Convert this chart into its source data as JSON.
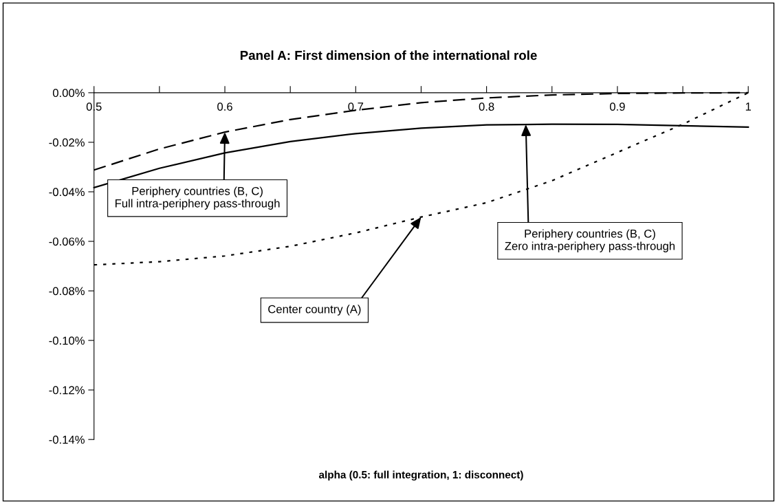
{
  "chart_data": {
    "type": "line",
    "title": "Panel A: First dimension of the international role",
    "xlabel": "alpha (0.5: full integration, 1: disconnect)",
    "x": [
      0.5,
      0.55,
      0.6,
      0.65,
      0.7,
      0.75,
      0.8,
      0.85,
      0.9,
      0.95,
      1.0
    ],
    "series": [
      {
        "color": "#000000",
        "line_style": "solid",
        "values": [
          -0.0383,
          -0.0305,
          -0.0243,
          -0.0197,
          -0.0165,
          -0.0143,
          -0.013,
          -0.0127,
          -0.0128,
          -0.0133,
          -0.0139
        ]
      },
      {
        "color": "#000000",
        "line_style": "dashed",
        "values": [
          -0.0312,
          -0.0227,
          -0.0159,
          -0.0108,
          -0.0071,
          -0.004,
          -0.0021,
          -0.0009,
          -0.0003,
          -0.0001,
          0.0
        ]
      },
      {
        "color": "#000000",
        "line_style": "dotted",
        "values": [
          -0.0695,
          -0.0682,
          -0.0659,
          -0.062,
          -0.0566,
          -0.0502,
          -0.0444,
          -0.0355,
          -0.0241,
          -0.0127,
          0.0
        ]
      }
    ],
    "xlim": [
      0.5,
      1.0
    ],
    "ylim": [
      -0.14,
      0.0
    ],
    "xticks": [
      0.5,
      {
        "value": 0.55,
        "label": null
      },
      0.6,
      {
        "value": 0.65,
        "label": null
      },
      0.7,
      {
        "value": 0.75,
        "label": null
      },
      0.8,
      {
        "value": 0.85,
        "label": null
      },
      0.9,
      {
        "value": 0.95,
        "label": null
      },
      1
    ],
    "yticks": [
      {
        "value": 0.0,
        "label": "0.00%"
      },
      {
        "value": -0.02,
        "label": "-0.02%"
      },
      {
        "value": -0.04,
        "label": "-0.04%"
      },
      {
        "value": -0.06,
        "label": "-0.06%"
      },
      {
        "value": -0.08,
        "label": "-0.08%"
      },
      {
        "value": -0.1,
        "label": "-0.10%"
      },
      {
        "value": -0.12,
        "label": "-0.12%"
      },
      {
        "value": -0.14,
        "label": "-0.14%"
      }
    ],
    "annotations": [
      {
        "text": "Periphery countries (B, C)\nFull intra-periphery pass-through",
        "x": 0.6,
        "y": -0.0159
      },
      {
        "text": "Periphery countries (B, C)\nZero intra-periphery pass-through",
        "x": 0.83,
        "y": -0.0128
      },
      {
        "text": "Center country (A)",
        "x": 0.75,
        "y": -0.0502
      }
    ],
    "grid": false,
    "marker": "none"
  }
}
